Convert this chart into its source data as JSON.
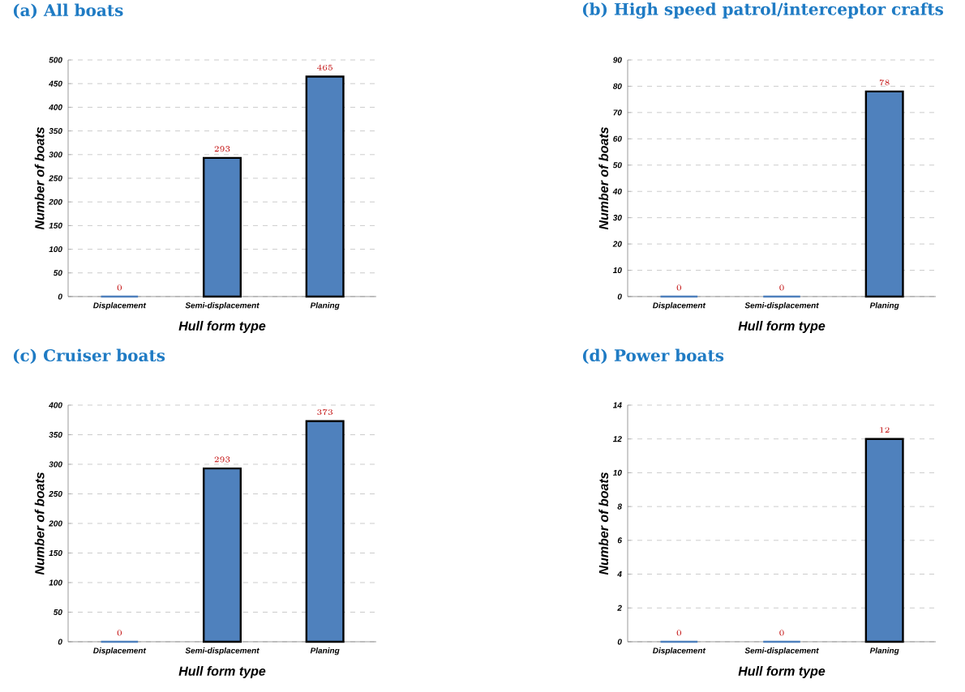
{
  "chart_data": [
    {
      "type": "bar",
      "title": "(a) All boats",
      "xlabel": "Hull form type",
      "ylabel": "Number of boats",
      "categories": [
        "Displacement",
        "Semi-displacement",
        "Planing"
      ],
      "values": [
        0,
        293,
        465
      ],
      "color": "#4f81bd",
      "ylim": [
        0,
        500
      ],
      "yticks": [
        0,
        50,
        100,
        150,
        200,
        250,
        300,
        350,
        400,
        450,
        500
      ],
      "grid": "y",
      "data_labels": true
    },
    {
      "type": "bar",
      "title": "(b) High speed patrol/interceptor crafts",
      "xlabel": "Hull form type",
      "ylabel": "Number of boats",
      "categories": [
        "Displacement",
        "Semi-displacement",
        "Planing"
      ],
      "values": [
        0,
        0,
        78
      ],
      "color": "#4f81bd",
      "ylim": [
        0,
        90
      ],
      "yticks": [
        0,
        10,
        20,
        30,
        40,
        50,
        60,
        70,
        80,
        90
      ],
      "grid": "y",
      "data_labels": true
    },
    {
      "type": "bar",
      "title": "(c) Cruiser boats",
      "xlabel": "Hull form type",
      "ylabel": "Number of boats",
      "categories": [
        "Displacement",
        "Semi-displacement",
        "Planing"
      ],
      "values": [
        0,
        293,
        373
      ],
      "color": "#4f81bd",
      "ylim": [
        0,
        400
      ],
      "yticks": [
        0,
        50,
        100,
        150,
        200,
        250,
        300,
        350,
        400
      ],
      "grid": "y",
      "data_labels": true
    },
    {
      "type": "bar",
      "title": "(d) Power boats",
      "xlabel": "Hull form type",
      "ylabel": "Number of boats",
      "categories": [
        "Displacement",
        "Semi-displacement",
        "Planing"
      ],
      "values": [
        0,
        0,
        12
      ],
      "color": "#4f81bd",
      "ylim": [
        0,
        14
      ],
      "yticks": [
        0,
        2,
        4,
        6,
        8,
        10,
        12,
        14
      ],
      "grid": "y",
      "data_labels": true
    }
  ]
}
